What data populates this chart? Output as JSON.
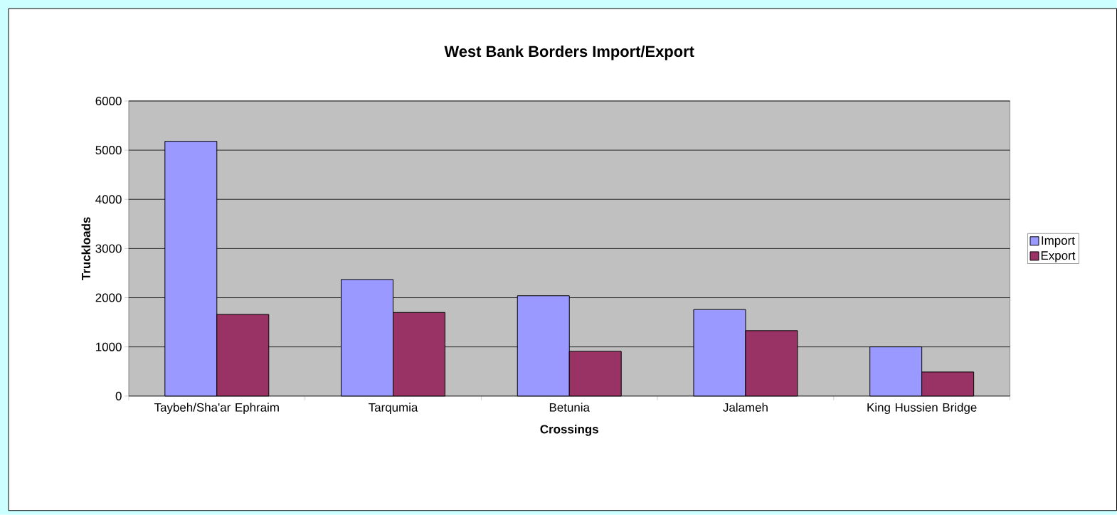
{
  "chart_data": {
    "type": "bar",
    "title": "West Bank Borders Import/Export",
    "xlabel": "Crossings",
    "ylabel": "Truckloads",
    "categories": [
      "Taybeh/Sha'ar Ephraim",
      "Tarqumia",
      "Betunia",
      "Jalameh",
      "King Hussien Bridge"
    ],
    "series": [
      {
        "name": "Import",
        "color": "#9999ff",
        "values": [
          5180,
          2370,
          2040,
          1760,
          1000
        ]
      },
      {
        "name": "Export",
        "color": "#993366",
        "values": [
          1660,
          1700,
          910,
          1330,
          490
        ]
      }
    ],
    "ylim": [
      0,
      6000
    ],
    "yticks": [
      0,
      1000,
      2000,
      3000,
      4000,
      5000,
      6000
    ],
    "grid": "y",
    "legend": "right"
  }
}
